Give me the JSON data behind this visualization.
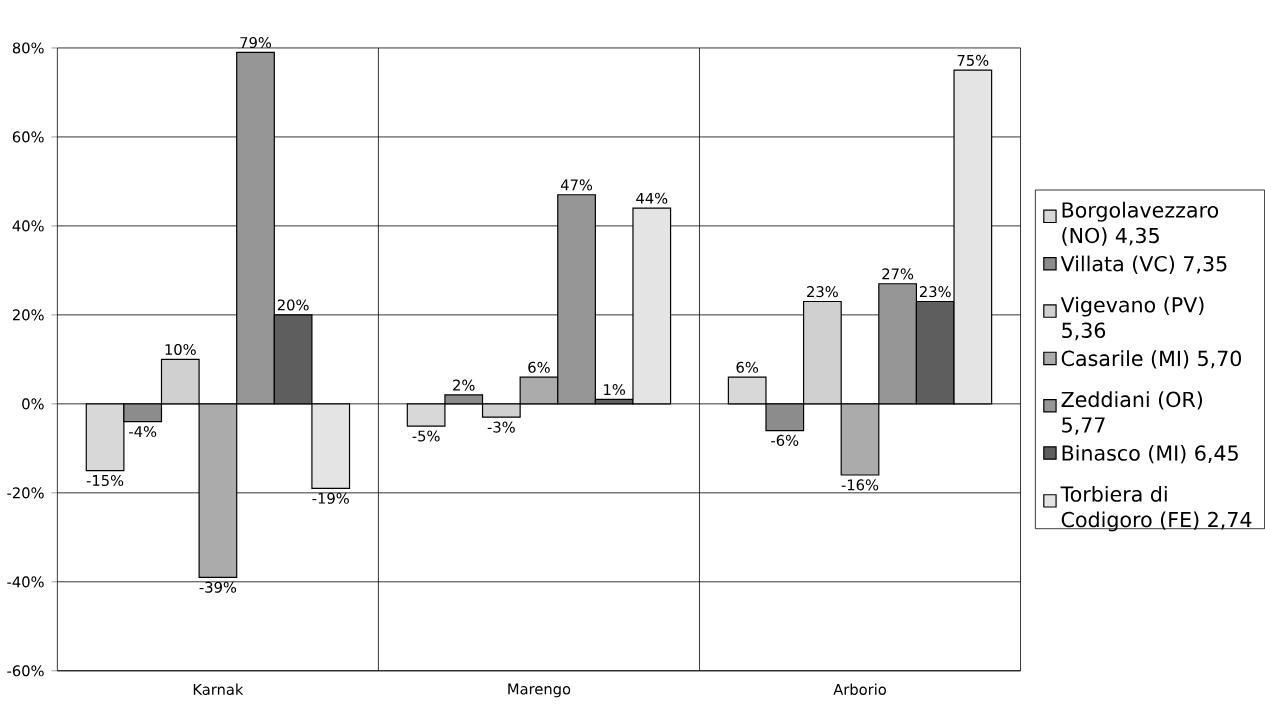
{
  "chart_data": {
    "type": "bar",
    "categories": [
      "Karnak",
      "Marengo",
      "Arborio"
    ],
    "series": [
      {
        "name": "Borgolavezzaro (NO) 4,35",
        "color": "#d8d8d8",
        "values": [
          -15,
          -5,
          6
        ],
        "value_labels": [
          "-15%",
          "-5%",
          "6%"
        ]
      },
      {
        "name": "Villata (VC) 7,35",
        "color": "#8c8c8c",
        "values": [
          -4,
          2,
          -6
        ],
        "value_labels": [
          "-4%",
          "2%",
          "-6%"
        ]
      },
      {
        "name": "Vigevano (PV) 5,36",
        "color": "#d0d0d0",
        "values": [
          10,
          -3,
          23
        ],
        "value_labels": [
          "10%",
          "-3%",
          "23%"
        ]
      },
      {
        "name": "Casarile (MI) 5,70",
        "color": "#ababab",
        "values": [
          -39,
          6,
          -16
        ],
        "value_labels": [
          "-39%",
          "6%",
          "-16%"
        ]
      },
      {
        "name": "Zeddiani (OR) 5,77",
        "color": "#969696",
        "values": [
          79,
          47,
          27
        ],
        "value_labels": [
          "79%",
          "47%",
          "27%"
        ]
      },
      {
        "name": "Binasco (MI) 6,45",
        "color": "#5e5e5e",
        "values": [
          20,
          1,
          23
        ],
        "value_labels": [
          "20%",
          "1%",
          "23%"
        ]
      },
      {
        "name": "Torbiera di Codigoro (FE) 2,74",
        "color": "#e4e4e4",
        "values": [
          -19,
          44,
          75
        ],
        "value_labels": [
          "-19%",
          "44%",
          "75%"
        ]
      }
    ],
    "ylim": [
      -60,
      80
    ],
    "yticks": [
      {
        "value": -60,
        "label": "-60%"
      },
      {
        "value": -40,
        "label": "-40%"
      },
      {
        "value": -20,
        "label": "-20%"
      },
      {
        "value": 0,
        "label": "0%"
      },
      {
        "value": 20,
        "label": "20%"
      },
      {
        "value": 40,
        "label": "40%"
      },
      {
        "value": 60,
        "label": "60%"
      },
      {
        "value": 80,
        "label": "80%"
      }
    ],
    "grid": true,
    "legend": "right"
  }
}
